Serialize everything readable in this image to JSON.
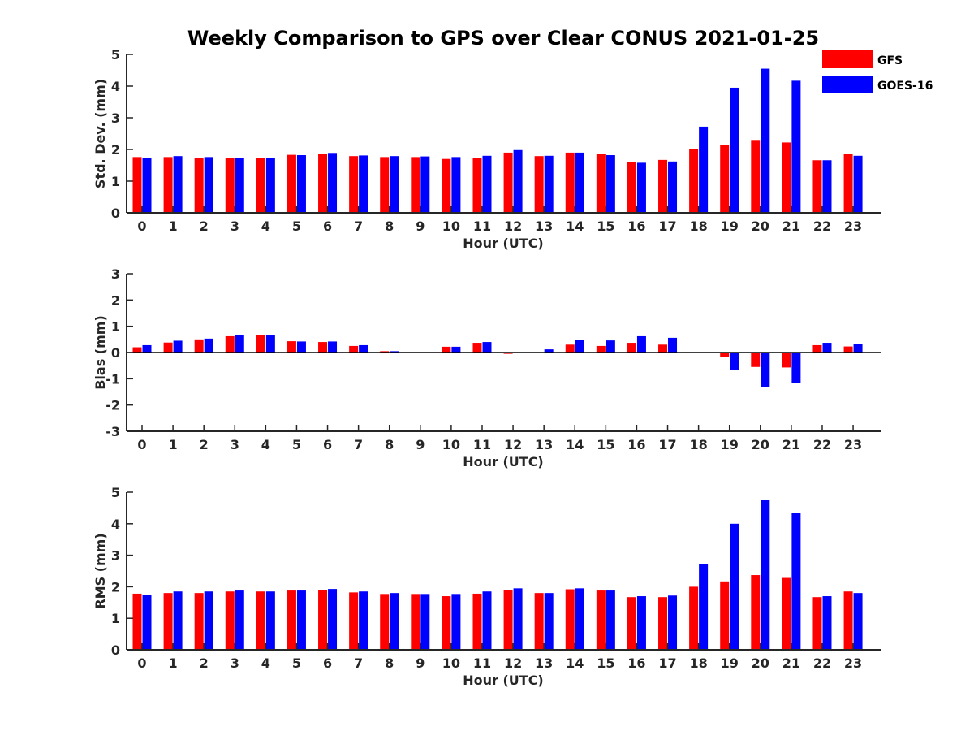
{
  "title": "Weekly Comparison to GPS over Clear CONUS 2021-01-25",
  "colors": {
    "GFS": "#ff0000",
    "GOES-16": "#0000ff",
    "axis": "#262626"
  },
  "legend": {
    "position": "top-right",
    "items": [
      "GFS",
      "GOES-16"
    ]
  },
  "chart_data": [
    {
      "type": "bar",
      "categories": [
        "0",
        "1",
        "2",
        "3",
        "4",
        "5",
        "6",
        "7",
        "8",
        "9",
        "10",
        "11",
        "12",
        "13",
        "14",
        "15",
        "16",
        "17",
        "18",
        "19",
        "20",
        "21",
        "22",
        "23"
      ],
      "xlabel": "Hour (UTC)",
      "ylabel": "Std. Dev. (mm)",
      "ylim": [
        0,
        5
      ],
      "yticks": [
        "0",
        "1",
        "2",
        "3",
        "4",
        "5"
      ],
      "series": [
        {
          "name": "GFS",
          "values": [
            1.76,
            1.76,
            1.73,
            1.74,
            1.72,
            1.83,
            1.87,
            1.79,
            1.76,
            1.76,
            1.7,
            1.72,
            1.9,
            1.79,
            1.9,
            1.87,
            1.61,
            1.67,
            2.0,
            2.15,
            2.3,
            2.22,
            1.66,
            1.85
          ]
        },
        {
          "name": "GOES-16",
          "values": [
            1.72,
            1.79,
            1.76,
            1.74,
            1.72,
            1.82,
            1.89,
            1.81,
            1.79,
            1.78,
            1.76,
            1.8,
            1.98,
            1.8,
            1.9,
            1.82,
            1.58,
            1.62,
            2.72,
            3.95,
            4.55,
            4.17,
            1.66,
            1.8
          ]
        }
      ]
    },
    {
      "type": "bar",
      "categories": [
        "0",
        "1",
        "2",
        "3",
        "4",
        "5",
        "6",
        "7",
        "8",
        "9",
        "10",
        "11",
        "12",
        "13",
        "14",
        "15",
        "16",
        "17",
        "18",
        "19",
        "20",
        "21",
        "22",
        "23"
      ],
      "xlabel": "Hour (UTC)",
      "ylabel": "Bias (mm)",
      "ylim": [
        -3,
        3
      ],
      "yticks": [
        "-3",
        "-2",
        "-1",
        "0",
        "1",
        "2",
        "3"
      ],
      "series": [
        {
          "name": "GFS",
          "values": [
            0.2,
            0.38,
            0.5,
            0.62,
            0.67,
            0.43,
            0.4,
            0.25,
            0.05,
            0.0,
            0.22,
            0.37,
            -0.05,
            0.0,
            0.3,
            0.25,
            0.37,
            0.3,
            -0.03,
            -0.17,
            -0.55,
            -0.57,
            0.28,
            0.23
          ]
        },
        {
          "name": "GOES-16",
          "values": [
            0.28,
            0.45,
            0.53,
            0.65,
            0.68,
            0.42,
            0.42,
            0.28,
            0.05,
            0.0,
            0.22,
            0.4,
            0.0,
            0.12,
            0.47,
            0.46,
            0.62,
            0.56,
            0.0,
            -0.68,
            -1.3,
            -1.15,
            0.37,
            0.32
          ]
        }
      ]
    },
    {
      "type": "bar",
      "categories": [
        "0",
        "1",
        "2",
        "3",
        "4",
        "5",
        "6",
        "7",
        "8",
        "9",
        "10",
        "11",
        "12",
        "13",
        "14",
        "15",
        "16",
        "17",
        "18",
        "19",
        "20",
        "21",
        "22",
        "23"
      ],
      "xlabel": "Hour (UTC)",
      "ylabel": "RMS (mm)",
      "ylim": [
        0,
        5
      ],
      "yticks": [
        "0",
        "1",
        "2",
        "3",
        "4",
        "5"
      ],
      "series": [
        {
          "name": "GFS",
          "values": [
            1.78,
            1.8,
            1.8,
            1.85,
            1.85,
            1.88,
            1.9,
            1.82,
            1.77,
            1.77,
            1.7,
            1.78,
            1.9,
            1.8,
            1.92,
            1.88,
            1.67,
            1.67,
            2.0,
            2.17,
            2.37,
            2.28,
            1.67,
            1.85
          ]
        },
        {
          "name": "GOES-16",
          "values": [
            1.75,
            1.85,
            1.85,
            1.88,
            1.85,
            1.88,
            1.93,
            1.85,
            1.8,
            1.77,
            1.77,
            1.85,
            1.95,
            1.8,
            1.95,
            1.88,
            1.7,
            1.72,
            2.73,
            4.0,
            4.75,
            4.33,
            1.7,
            1.8
          ]
        }
      ]
    }
  ]
}
